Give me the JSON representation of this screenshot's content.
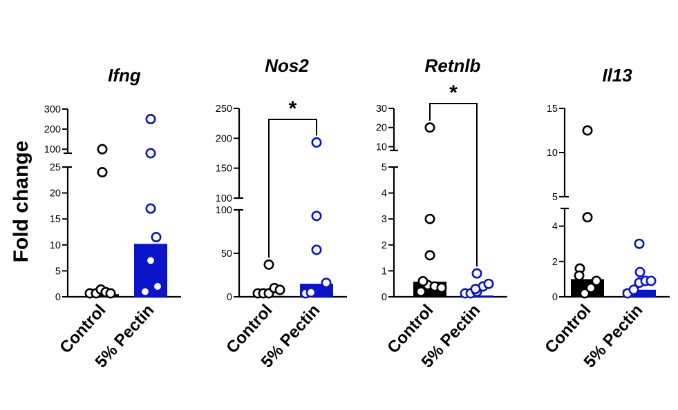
{
  "y_axis_title": "Fold change",
  "chart_data": [
    {
      "type": "bar",
      "title": "Ifng",
      "categories": [
        "Control",
        "5% Pectin"
      ],
      "bar_values": [
        0.5,
        10.2
      ],
      "series_colors": [
        "#000000",
        "#0a14c8"
      ],
      "points": [
        [
          0.1,
          0.2,
          1.4,
          0.9,
          0.6,
          24,
          100
        ],
        [
          1.0,
          2.0,
          7.0,
          11.5,
          17,
          55,
          250
        ]
      ],
      "y_axis_broken": true,
      "segments": [
        {
          "ylim": [
            0,
            25
          ],
          "ticks": [
            "0",
            "5",
            "10",
            "15",
            "20",
            "25"
          ]
        },
        {
          "ylim": [
            80,
            300
          ],
          "ticks": [
            "100",
            "200",
            "300"
          ]
        }
      ],
      "significance": ""
    },
    {
      "type": "bar",
      "title": "Nos2",
      "categories": [
        "Control",
        "5% Pectin"
      ],
      "bar_values": [
        1,
        15
      ],
      "series_colors": [
        "#000000",
        "#0a14c8"
      ],
      "points": [
        [
          1,
          2,
          3,
          10,
          8,
          37
        ],
        [
          2,
          5,
          16,
          54,
          93,
          193
        ]
      ],
      "y_axis_broken": true,
      "segments": [
        {
          "ylim": [
            0,
            100
          ],
          "ticks": [
            "0",
            "50",
            "100"
          ]
        },
        {
          "ylim": [
            100,
            250
          ],
          "ticks": [
            "100",
            "150",
            "200",
            "250"
          ]
        }
      ],
      "significance": "*"
    },
    {
      "type": "bar",
      "title": "Retnlb",
      "categories": [
        "Control",
        "5% Pectin"
      ],
      "bar_values": [
        0.58,
        0.05
      ],
      "series_colors": [
        "#000000",
        "#0a14c8"
      ],
      "points": [
        [
          0.2,
          0.45,
          0.4,
          0.35,
          0.6,
          1.6,
          3.0,
          20
        ],
        [
          0.05,
          0.1,
          0.2,
          0.4,
          0.5,
          0.3,
          0.9
        ]
      ],
      "y_axis_broken": true,
      "segments": [
        {
          "ylim": [
            0,
            5
          ],
          "ticks": [
            "0",
            "1",
            "2",
            "3",
            "4",
            "5"
          ]
        },
        {
          "ylim": [
            8,
            30
          ],
          "ticks": [
            "10",
            "20",
            "30"
          ]
        }
      ],
      "significance": "*"
    },
    {
      "type": "bar",
      "title": "Il13",
      "categories": [
        "Control",
        "5% Pectin"
      ],
      "bar_values": [
        1.0,
        0.4
      ],
      "series_colors": [
        "#000000",
        "#0a14c8"
      ],
      "points": [
        [
          0.1,
          0.5,
          0.9,
          1.6,
          1.2,
          4.5,
          12.5
        ],
        [
          0.1,
          0.4,
          0.8,
          0.9,
          1.4,
          3.0,
          0.9
        ]
      ],
      "y_axis_broken": true,
      "segments": [
        {
          "ylim": [
            0,
            5
          ],
          "ticks": [
            "0",
            "2",
            "4"
          ]
        },
        {
          "ylim": [
            5,
            15
          ],
          "ticks": [
            "5",
            "10",
            "15"
          ]
        }
      ],
      "significance": ""
    }
  ]
}
